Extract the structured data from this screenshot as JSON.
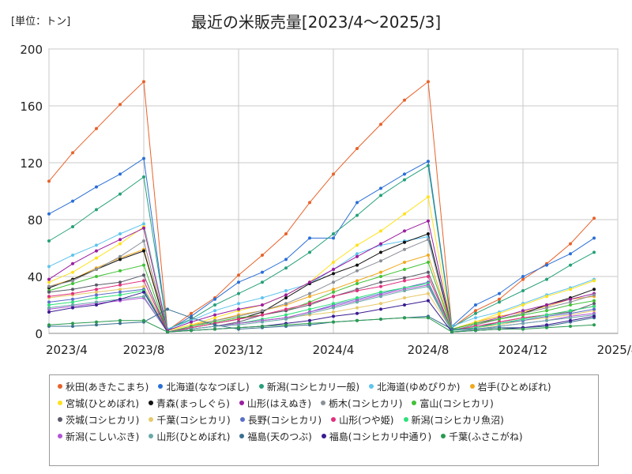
{
  "header": {
    "unit_label": "[単位：トン]",
    "title": "最近の米販売量[2023/4～2025/3]"
  },
  "chart_data": {
    "type": "line",
    "title": "最近の米販売量[2023/4～2025/3]",
    "ylabel": "[単位：トン]",
    "xlabel": "",
    "ylim": [
      0,
      200
    ],
    "xlim": [
      0,
      24
    ],
    "yticks": [
      0,
      40,
      80,
      120,
      160,
      200
    ],
    "xticks": [
      {
        "pos": 0,
        "label": "2023/4"
      },
      {
        "pos": 4,
        "label": "2023/8"
      },
      {
        "pos": 8,
        "label": "2023/12"
      },
      {
        "pos": 12,
        "label": "2024/4"
      },
      {
        "pos": 16,
        "label": "2024/8"
      },
      {
        "pos": 20,
        "label": "2024/12"
      },
      {
        "pos": 24,
        "label": "2025/4"
      }
    ],
    "grid": true,
    "legend_position": "bottom",
    "x": [
      0,
      1,
      2,
      3,
      4,
      5,
      6,
      7,
      8,
      9,
      10,
      11,
      12,
      13,
      14,
      15,
      16,
      17,
      18,
      19,
      20,
      21,
      22,
      23
    ],
    "series": [
      {
        "name": "秋田(あきたこまち)",
        "color": "#e8622a",
        "values": [
          107,
          127,
          144,
          161,
          177,
          2,
          14,
          25,
          41,
          55,
          70,
          92,
          112,
          130,
          147,
          164,
          177,
          4,
          16,
          24,
          38,
          49,
          63,
          81
        ]
      },
      {
        "name": "北海道(ななつぼし)",
        "color": "#2a6fd6",
        "values": [
          84,
          93,
          103,
          112,
          123,
          2,
          12,
          24,
          36,
          43,
          52,
          67,
          67,
          92,
          102,
          112,
          121,
          5,
          20,
          28,
          40,
          48,
          56,
          67
        ]
      },
      {
        "name": "新潟(コシヒカリ一般)",
        "color": "#26a07a",
        "values": [
          65,
          75,
          87,
          98,
          110,
          3,
          10,
          20,
          28,
          36,
          46,
          57,
          70,
          83,
          97,
          108,
          118,
          4,
          14,
          22,
          30,
          38,
          48,
          57
        ]
      },
      {
        "name": "北海道(ゆめぴりか)",
        "color": "#5ec4ee",
        "values": [
          47,
          55,
          62,
          70,
          77,
          3,
          9,
          16,
          21,
          25,
          30,
          35,
          45,
          56,
          62,
          65,
          68,
          5,
          11,
          15,
          21,
          27,
          32,
          38
        ]
      },
      {
        "name": "岩手(ひとめぼれ)",
        "color": "#f0a91e",
        "values": [
          33,
          38,
          46,
          53,
          59,
          2,
          6,
          9,
          13,
          16,
          20,
          26,
          31,
          37,
          43,
          50,
          55,
          3,
          8,
          12,
          15,
          19,
          24,
          26
        ]
      },
      {
        "name": "宮城(ひとめぼれ)",
        "color": "#ffe21e",
        "values": [
          36,
          43,
          53,
          63,
          75,
          2,
          6,
          11,
          16,
          20,
          27,
          36,
          50,
          62,
          72,
          84,
          96,
          3,
          8,
          14,
          20,
          26,
          31,
          37
        ]
      },
      {
        "name": "青森(まっしぐら)",
        "color": "#111111",
        "values": [
          32,
          38,
          45,
          52,
          58,
          1,
          4,
          7,
          10,
          15,
          25,
          35,
          42,
          48,
          57,
          64,
          70,
          2,
          6,
          10,
          14,
          20,
          25,
          31
        ]
      },
      {
        "name": "山形(はえぬき)",
        "color": "#9a1ea0",
        "values": [
          38,
          49,
          58,
          66,
          74,
          2,
          8,
          13,
          17,
          20,
          27,
          36,
          45,
          54,
          63,
          72,
          79,
          3,
          7,
          11,
          16,
          20,
          24,
          28
        ]
      },
      {
        "name": "栃木(コシヒカリ)",
        "color": "#8a8f99",
        "values": [
          33,
          37,
          45,
          54,
          65,
          1,
          5,
          9,
          12,
          16,
          21,
          28,
          36,
          44,
          51,
          59,
          66,
          2,
          6,
          10,
          14,
          18,
          22,
          27
        ]
      },
      {
        "name": "富山(コシヒカリ)",
        "color": "#43c238",
        "values": [
          30,
          35,
          40,
          44,
          48,
          1,
          5,
          8,
          11,
          13,
          16,
          22,
          29,
          35,
          40,
          45,
          50,
          3,
          7,
          10,
          13,
          16,
          20,
          23
        ]
      },
      {
        "name": "茨城(コシヒカリ)",
        "color": "#5a5a6a",
        "values": [
          29,
          31,
          34,
          36,
          41,
          1,
          3,
          5,
          8,
          13,
          16,
          20,
          26,
          31,
          36,
          39,
          43,
          2,
          4,
          8,
          11,
          13,
          15,
          21
        ]
      },
      {
        "name": "千葉(コシヒカリ)",
        "color": "#e6c96a",
        "values": [
          25,
          27,
          29,
          31,
          33,
          1,
          3,
          5,
          7,
          9,
          11,
          13,
          15,
          18,
          21,
          25,
          28,
          2,
          4,
          6,
          9,
          11,
          13,
          16
        ]
      },
      {
        "name": "長野(コシヒカリ)",
        "color": "#5a6ec8",
        "values": [
          22,
          24,
          27,
          29,
          31,
          1,
          3,
          5,
          7,
          9,
          11,
          15,
          20,
          24,
          28,
          32,
          36,
          2,
          4,
          7,
          9,
          12,
          14,
          17
        ]
      },
      {
        "name": "山形(つや姫)",
        "color": "#e0307e",
        "values": [
          26,
          28,
          31,
          34,
          37,
          1,
          4,
          7,
          10,
          13,
          17,
          21,
          26,
          30,
          33,
          37,
          40,
          2,
          5,
          8,
          11,
          13,
          16,
          19
        ]
      },
      {
        "name": "新潟(コシヒカリ魚沼)",
        "color": "#2ee07a",
        "values": [
          20,
          22,
          25,
          27,
          30,
          1,
          3,
          5,
          7,
          10,
          13,
          17,
          21,
          25,
          29,
          32,
          35,
          2,
          4,
          7,
          10,
          13,
          16,
          19
        ]
      },
      {
        "name": "新潟(こしいぶき)",
        "color": "#b354d6",
        "values": [
          17,
          19,
          21,
          23,
          25,
          1,
          3,
          5,
          7,
          9,
          11,
          15,
          19,
          23,
          27,
          31,
          34,
          1,
          3,
          5,
          7,
          9,
          12,
          14
        ]
      },
      {
        "name": "山形(ひとめぼれ)",
        "color": "#6aa8a8",
        "values": [
          18,
          20,
          22,
          24,
          26,
          1,
          3,
          5,
          6,
          8,
          10,
          14,
          18,
          22,
          26,
          30,
          33,
          1,
          3,
          5,
          7,
          9,
          11,
          13
        ]
      },
      {
        "name": "福島(天のつぶ)",
        "color": "#3a7090",
        "values": [
          5,
          5,
          6,
          7,
          8,
          17,
          11,
          6,
          3,
          4,
          5,
          6,
          8,
          9,
          10,
          11,
          12,
          3,
          3,
          4,
          4,
          5,
          8,
          11
        ]
      },
      {
        "name": "福島(コシヒカリ中通り)",
        "color": "#3a1a90",
        "values": [
          15,
          18,
          20,
          24,
          29,
          1,
          2,
          3,
          4,
          5,
          7,
          9,
          12,
          14,
          17,
          20,
          23,
          1,
          2,
          3,
          4,
          6,
          9,
          12
        ]
      },
      {
        "name": "千葉(ふさこがね)",
        "color": "#2a9a50",
        "values": [
          6,
          7,
          8,
          9,
          9,
          1,
          2,
          3,
          4,
          5,
          6,
          7,
          8,
          9,
          10,
          11,
          11,
          1,
          2,
          3,
          3,
          4,
          5,
          6
        ]
      }
    ]
  }
}
